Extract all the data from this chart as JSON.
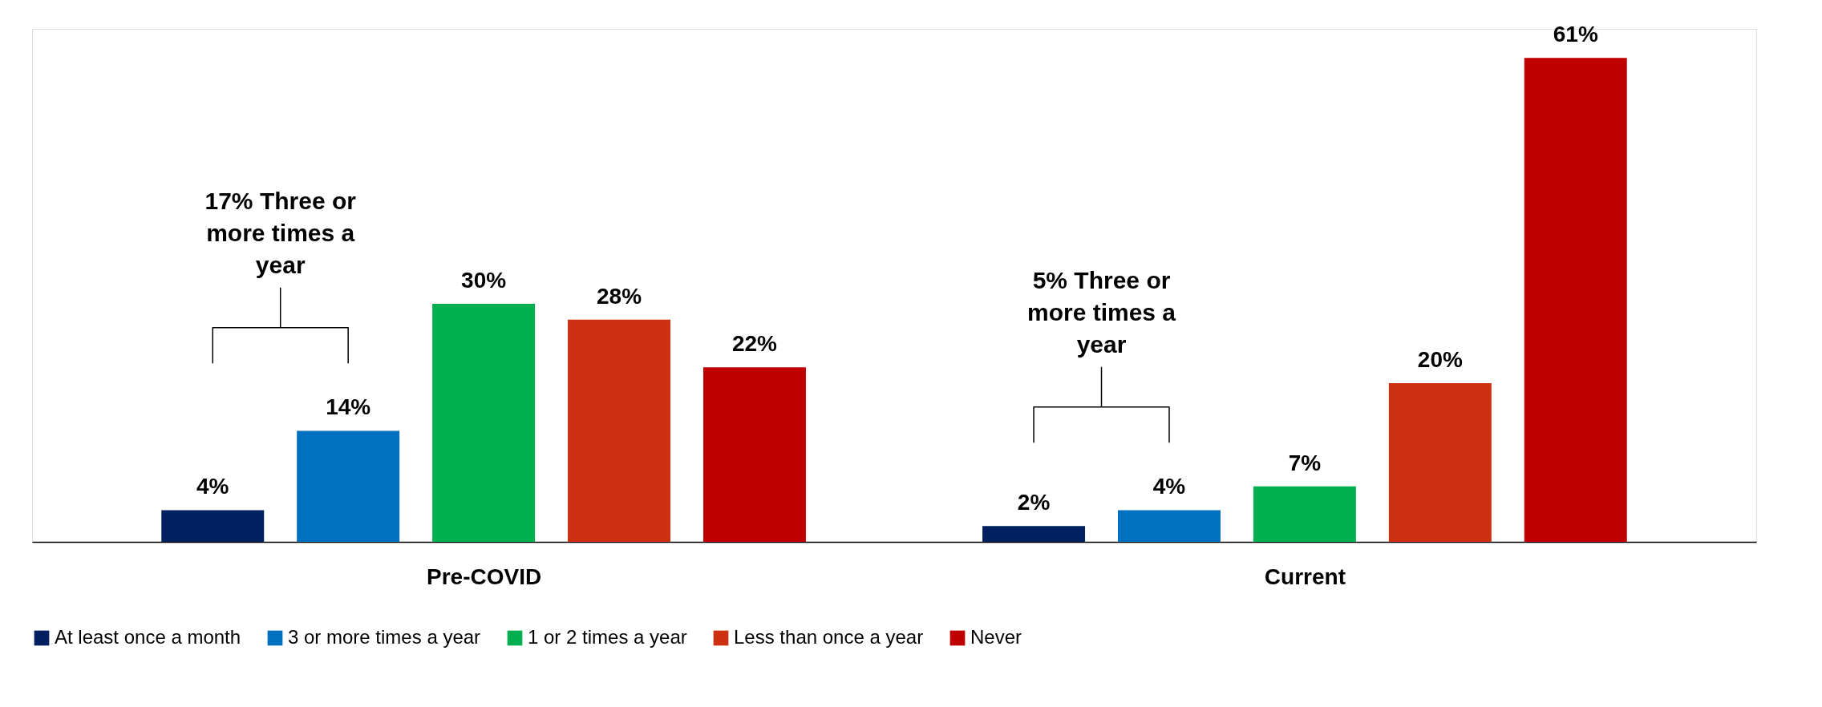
{
  "chart_data": {
    "type": "bar",
    "categories": [
      "Pre-COVID",
      "Current"
    ],
    "series": [
      {
        "name": "At least once a month",
        "color": "#002060",
        "values": [
          4,
          2
        ],
        "value_labels": [
          "4%",
          "2%"
        ]
      },
      {
        "name": "3 or more times a year",
        "color": "#0070c0",
        "values": [
          14,
          4
        ],
        "value_labels": [
          "14%",
          "4%"
        ]
      },
      {
        "name": "1 or 2 times a year",
        "color": "#00b050",
        "values": [
          30,
          7
        ],
        "value_labels": [
          "30%",
          "7%"
        ]
      },
      {
        "name": "Less than once a year",
        "color": "#cc3011",
        "values": [
          28,
          20
        ],
        "value_labels": [
          "28%",
          "20%"
        ]
      },
      {
        "name": "Never",
        "color": "#c00000",
        "values": [
          22,
          61
        ],
        "value_labels": [
          "22%",
          "61%"
        ]
      }
    ],
    "annotations": [
      "17% Three or more times a year",
      "5% Three or more times a year"
    ],
    "legend": "bottom",
    "grid": false
  }
}
